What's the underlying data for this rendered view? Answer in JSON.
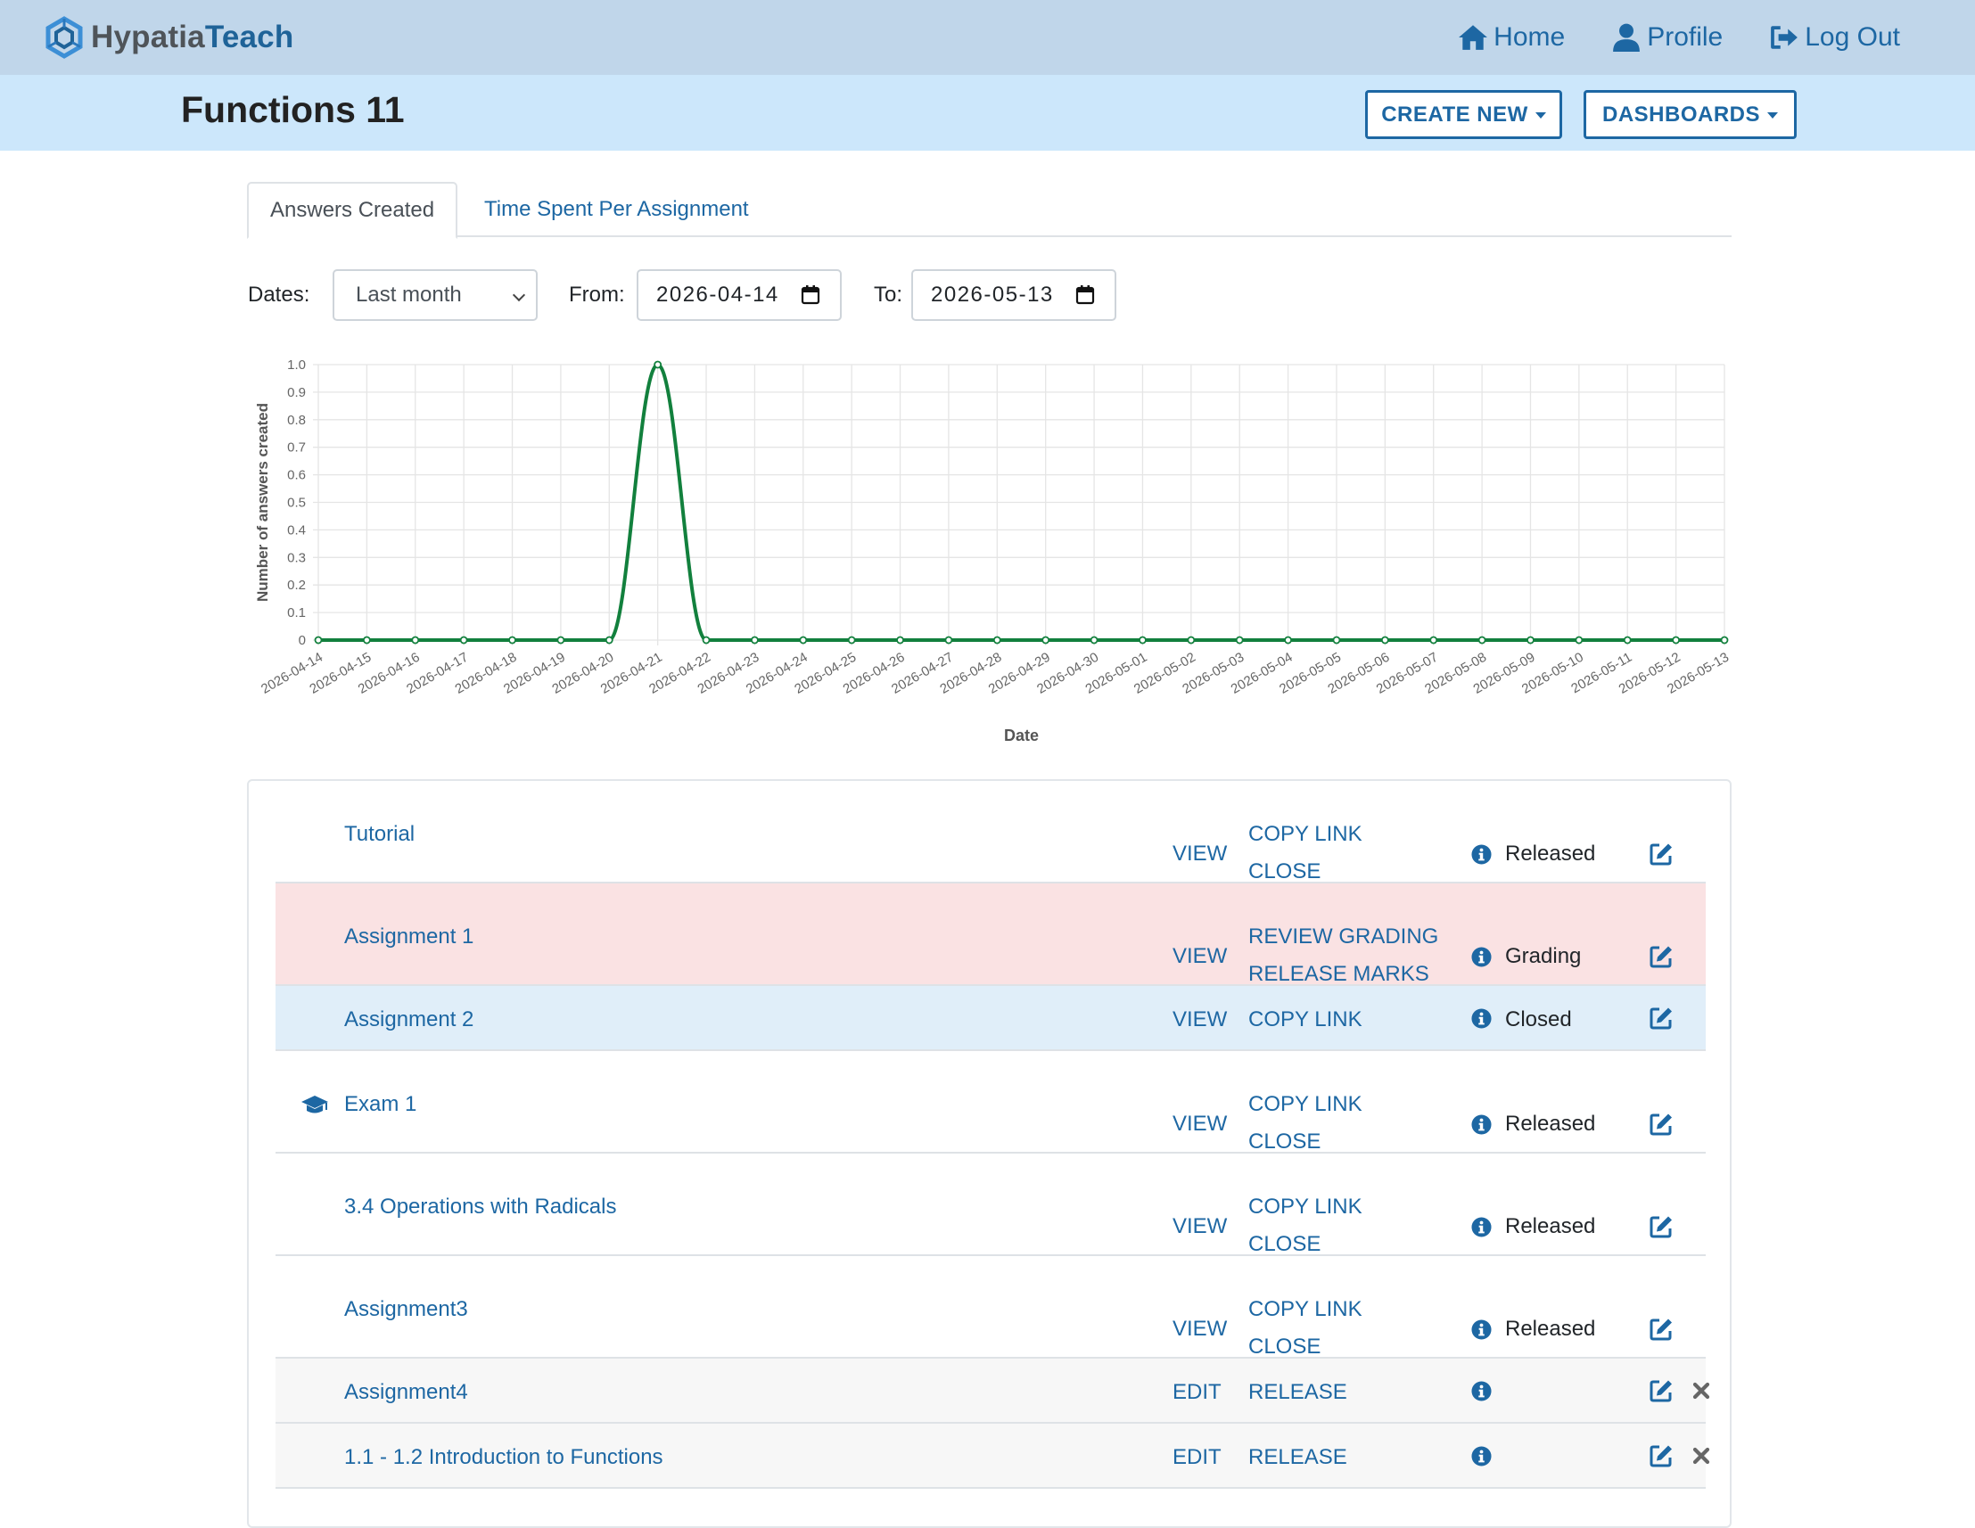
{
  "brand": {
    "part1": "Hypatia",
    "part2": "Teach"
  },
  "nav": {
    "home": "Home",
    "profile": "Profile",
    "logout": "Log Out"
  },
  "page": {
    "title": "Functions 11"
  },
  "header_buttons": {
    "create_new": "CREATE NEW",
    "dashboards": "DASHBOARDS"
  },
  "tabs": {
    "answers_created": "Answers Created",
    "time_spent": "Time Spent Per Assignment"
  },
  "filters": {
    "dates_label": "Dates:",
    "range_value": "Last month",
    "from_label": "From:",
    "from_value": "2026-04-14",
    "to_label": "To:",
    "to_value": "2026-05-13"
  },
  "chart_data": {
    "type": "line",
    "xlabel": "Date",
    "ylabel": "Number of answers created",
    "ylim": [
      0,
      1
    ],
    "yticks": [
      "0",
      "0.1",
      "0.2",
      "0.3",
      "0.4",
      "0.5",
      "0.6",
      "0.7",
      "0.8",
      "0.9",
      "1.0"
    ],
    "x": [
      "2026-04-14",
      "2026-04-15",
      "2026-04-16",
      "2026-04-17",
      "2026-04-18",
      "2026-04-19",
      "2026-04-20",
      "2026-04-21",
      "2026-04-22",
      "2026-04-23",
      "2026-04-24",
      "2026-04-25",
      "2026-04-26",
      "2026-04-27",
      "2026-04-28",
      "2026-04-29",
      "2026-04-30",
      "2026-05-01",
      "2026-05-02",
      "2026-05-03",
      "2026-05-04",
      "2026-05-05",
      "2026-05-06",
      "2026-05-07",
      "2026-05-08",
      "2026-05-09",
      "2026-05-10",
      "2026-05-11",
      "2026-05-12",
      "2026-05-13"
    ],
    "series": [
      {
        "values": [
          0,
          0,
          0,
          0,
          0,
          0,
          0,
          1,
          0,
          0,
          0,
          0,
          0,
          0,
          0,
          0,
          0,
          0,
          0,
          0,
          0,
          0,
          0,
          0,
          0,
          0,
          0,
          0,
          0,
          0
        ]
      }
    ],
    "line_color": "#12803d",
    "grid": true,
    "legend": "none"
  },
  "assignments": [
    {
      "name": "Tutorial",
      "primary": "VIEW",
      "actions": [
        "COPY LINK",
        "CLOSE"
      ],
      "status": "Released",
      "style": "white",
      "exam": false,
      "deletable": false
    },
    {
      "name": "Assignment 1",
      "primary": "VIEW",
      "actions": [
        "REVIEW GRADING",
        "RELEASE MARKS"
      ],
      "status": "Grading",
      "style": "red",
      "exam": false,
      "deletable": false
    },
    {
      "name": "Assignment 2",
      "primary": "VIEW",
      "actions": [
        "COPY LINK"
      ],
      "status": "Closed",
      "style": "blue",
      "exam": false,
      "deletable": false
    },
    {
      "name": "Exam 1",
      "primary": "VIEW",
      "actions": [
        "COPY LINK",
        "CLOSE"
      ],
      "status": "Released",
      "style": "white",
      "exam": true,
      "deletable": false
    },
    {
      "name": "3.4 Operations with Radicals",
      "primary": "VIEW",
      "actions": [
        "COPY LINK",
        "CLOSE"
      ],
      "status": "Released",
      "style": "white",
      "exam": false,
      "deletable": false
    },
    {
      "name": "Assignment3",
      "primary": "VIEW",
      "actions": [
        "COPY LINK",
        "CLOSE"
      ],
      "status": "Released",
      "style": "white",
      "exam": false,
      "deletable": false
    },
    {
      "name": "Assignment4",
      "primary": "EDIT",
      "actions": [
        "RELEASE"
      ],
      "status": "",
      "style": "grey",
      "exam": false,
      "deletable": true
    },
    {
      "name": "1.1 - 1.2 Introduction to Functions",
      "primary": "EDIT",
      "actions": [
        "RELEASE"
      ],
      "status": "",
      "style": "grey",
      "exam": false,
      "deletable": true
    }
  ]
}
